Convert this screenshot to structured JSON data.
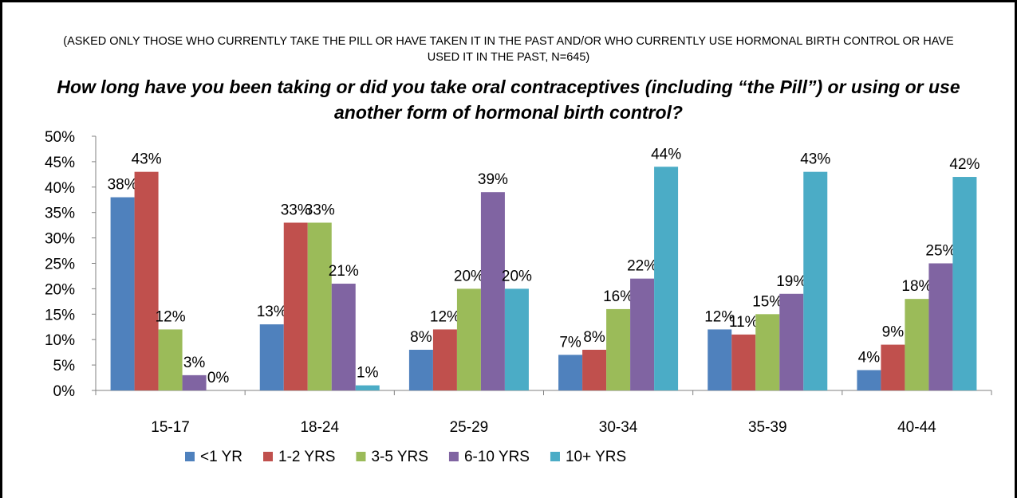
{
  "chart_data": {
    "type": "bar",
    "subtitle": "(ASKED ONLY THOSE WHO CURRENTLY TAKE THE PILL OR HAVE TAKEN IT IN THE PAST AND/OR WHO CURRENTLY USE HORMONAL BIRTH CONTROL OR HAVE USED IT IN THE PAST, N=645)",
    "title": "How long have you been taking or did you take oral contraceptives (including “the Pill”) or using or use another form of hormonal birth control?",
    "categories": [
      "15-17",
      "18-24",
      "25-29",
      "30-34",
      "35-39",
      "40-44"
    ],
    "series": [
      {
        "name": "<1 YR",
        "color": "#4F81BD",
        "values": [
          38,
          13,
          8,
          7,
          12,
          4
        ]
      },
      {
        "name": "1-2 YRS",
        "color": "#C0504D",
        "values": [
          43,
          33,
          12,
          8,
          11,
          9
        ]
      },
      {
        "name": "3-5 YRS",
        "color": "#9BBB59",
        "values": [
          12,
          33,
          20,
          16,
          15,
          18
        ]
      },
      {
        "name": "6-10 YRS",
        "color": "#8064A2",
        "values": [
          3,
          21,
          39,
          22,
          19,
          25
        ]
      },
      {
        "name": "10+ YRS",
        "color": "#4BACC6",
        "values": [
          0,
          1,
          20,
          44,
          43,
          42
        ]
      }
    ],
    "yticks": [
      "0%",
      "5%",
      "10%",
      "15%",
      "20%",
      "25%",
      "30%",
      "35%",
      "40%",
      "45%",
      "50%"
    ],
    "ylim": [
      0,
      50
    ],
    "value_suffix": "%",
    "grid": false,
    "legend": "bottom"
  }
}
